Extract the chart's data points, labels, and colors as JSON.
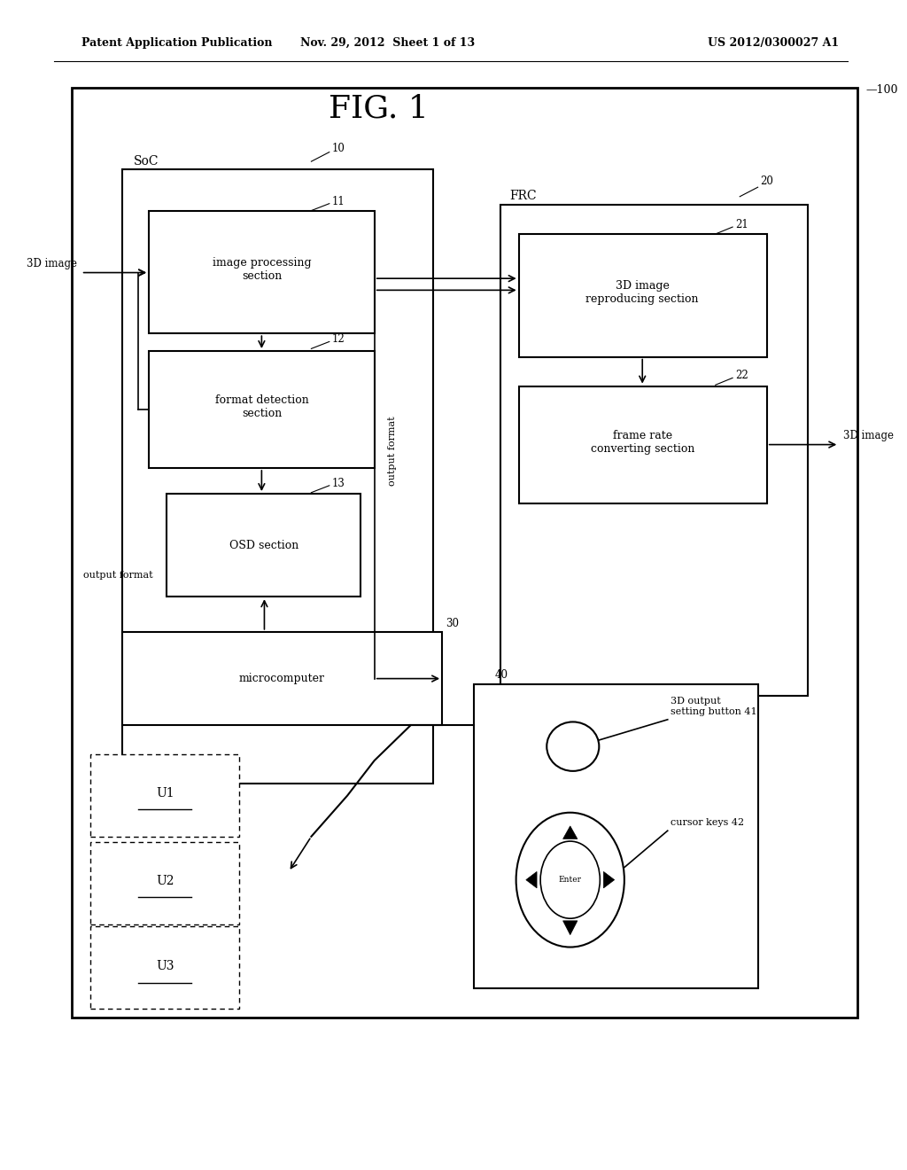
{
  "bg_color": "#ffffff",
  "header_left": "Patent Application Publication",
  "header_mid": "Nov. 29, 2012  Sheet 1 of 13",
  "header_right": "US 2012/0300027 A1",
  "fig_title": "FIG. 1",
  "soc_label": "SoC",
  "soc_ref": "10",
  "frc_label": "FRC",
  "frc_ref": "20",
  "img_proc_label": "image processing\nsection",
  "img_proc_ref": "11",
  "fmt_det_label": "format detection\nsection",
  "fmt_det_ref": "12",
  "osd_label": "OSD section",
  "osd_ref": "13",
  "img_repro_label": "3D image\nreproducing section",
  "img_repro_ref": "21",
  "fr_conv_label": "frame rate\nconverting section",
  "fr_conv_ref": "22",
  "micro_label": "microcomputer",
  "micro_ref": "30",
  "remote_ref": "40",
  "u1_label": "U1",
  "u2_label": "U2",
  "u3_label": "U3",
  "outer_ref": "100"
}
